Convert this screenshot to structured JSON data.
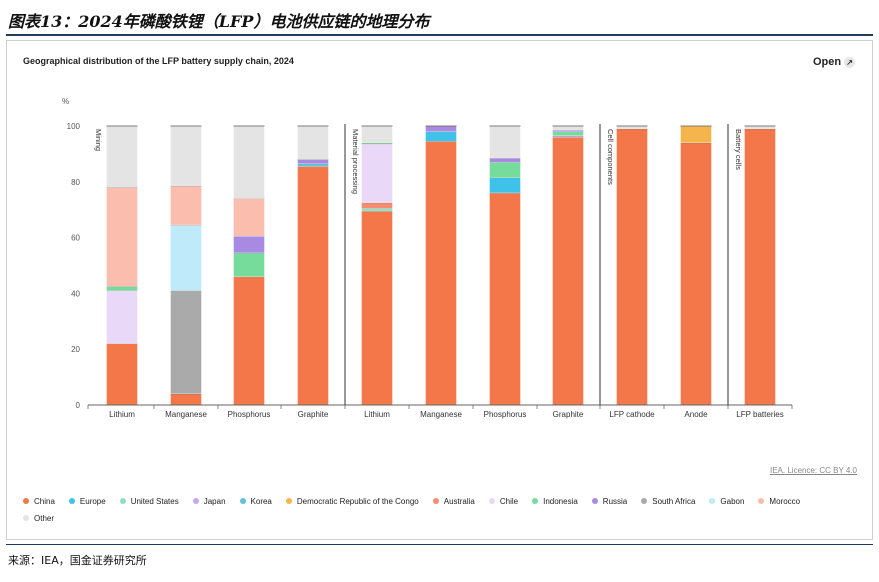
{
  "header": {
    "figure_title": "图表13：2024年磷酸铁锂（LFP）电池供应链的地理分布"
  },
  "open_button": {
    "label": "Open",
    "icon": "external-link-icon"
  },
  "licence": "IEA. Licence: CC BY 4.0",
  "source": "来源：IEA，国金证券研究所",
  "chart_data": {
    "type": "bar",
    "stacked": true,
    "title": "Geographical distribution of the LFP battery supply chain, 2024",
    "ylabel": "%",
    "ylim": [
      0,
      100
    ],
    "yticks": [
      0,
      20,
      40,
      60,
      80,
      100
    ],
    "grid": false,
    "legend_position": "bottom",
    "stages": [
      {
        "name": "Mining",
        "categories": [
          "Lithium",
          "Manganese",
          "Phosphorus",
          "Graphite"
        ]
      },
      {
        "name": "Material processing",
        "categories": [
          "Lithium",
          "Manganese",
          "Phosphorus",
          "Graphite"
        ]
      },
      {
        "name": "Cell components",
        "categories": [
          "LFP cathode",
          "Anode"
        ]
      },
      {
        "name": "Battery cells",
        "categories": [
          "LFP batteries"
        ]
      }
    ],
    "categories": [
      "Lithium",
      "Manganese",
      "Phosphorus",
      "Graphite",
      "Lithium",
      "Manganese",
      "Phosphorus",
      "Graphite",
      "LFP cathode",
      "Anode",
      "LFP batteries"
    ],
    "series": [
      {
        "name": "China",
        "color": "#f4774a",
        "values": [
          22,
          4,
          46,
          85.5,
          69.5,
          94.5,
          76,
          96,
          99,
          94,
          99
        ]
      },
      {
        "name": "Europe",
        "color": "#3fc2e9",
        "values": [
          0,
          0,
          0,
          0,
          0,
          3.5,
          5.5,
          0,
          0,
          0,
          0
        ]
      },
      {
        "name": "United States",
        "color": "#8fdfc3",
        "values": [
          0,
          0,
          0,
          0,
          1,
          0,
          0,
          0,
          0,
          0,
          0
        ]
      },
      {
        "name": "Japan",
        "color": "#c8a8ec",
        "values": [
          0,
          0,
          0,
          0,
          0,
          0,
          0,
          0.5,
          0,
          0,
          0
        ]
      },
      {
        "name": "Korea",
        "color": "#5fc1d6",
        "values": [
          0,
          0,
          0,
          1,
          0,
          0,
          0,
          0,
          0,
          0,
          0
        ]
      },
      {
        "name": "Democratic Republic of the Congo",
        "color": "#f6b44d",
        "values": [
          0,
          0,
          0,
          0,
          0,
          0,
          0,
          0,
          0,
          6,
          0
        ]
      },
      {
        "name": "Australia",
        "color": "#f88c70",
        "values": [
          0,
          0,
          0,
          0,
          2,
          0,
          0,
          0,
          0,
          0,
          0
        ]
      },
      {
        "name": "Chile",
        "color": "#e9d8f8",
        "values": [
          19,
          0,
          0,
          0,
          21,
          0,
          0,
          0,
          0,
          0,
          0
        ]
      },
      {
        "name": "Indonesia",
        "color": "#76dc9c",
        "values": [
          1.5,
          0,
          8.5,
          0,
          0.5,
          0,
          5.5,
          1.5,
          0,
          0,
          0
        ]
      },
      {
        "name": "Russia",
        "color": "#a98ae3",
        "values": [
          0,
          0,
          6,
          1.5,
          0,
          2,
          1.5,
          0.5,
          0,
          0,
          0
        ]
      },
      {
        "name": "South Africa",
        "color": "#aaaaaa",
        "values": [
          0,
          37,
          0,
          0,
          0,
          0,
          0,
          0,
          0,
          0,
          0
        ]
      },
      {
        "name": "Gabon",
        "color": "#bfeaf9",
        "values": [
          0,
          23.5,
          0,
          0,
          0,
          0,
          0,
          0,
          0,
          0,
          0
        ]
      },
      {
        "name": "Morocco",
        "color": "#fbbdad",
        "values": [
          35.5,
          14,
          13.5,
          0,
          0,
          0,
          0,
          0,
          0,
          0,
          0
        ]
      },
      {
        "name": "Other",
        "color": "#e4e4e4",
        "values": [
          22,
          21.5,
          26,
          12,
          6,
          0,
          11.5,
          1.5,
          1,
          0,
          1
        ]
      }
    ]
  }
}
